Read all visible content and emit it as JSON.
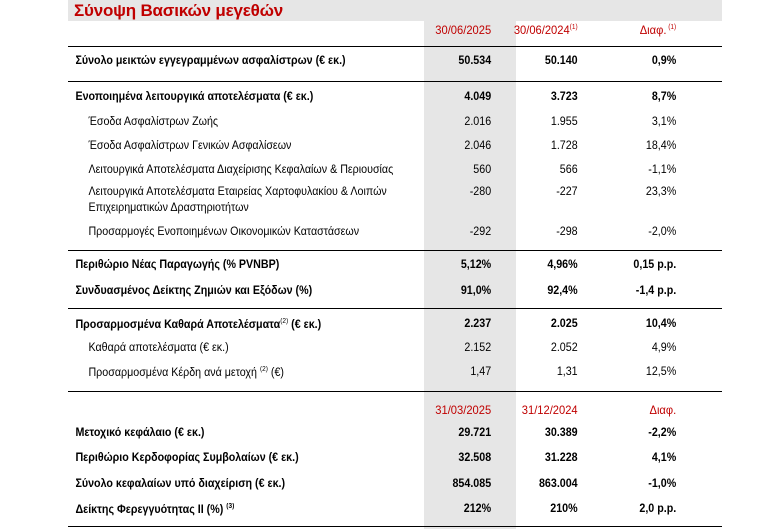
{
  "title": "Σύνοψη Βασικών μεγεθών",
  "header1": {
    "c1": "30/06/2025",
    "c2": "30/06/2024",
    "c2_sup": "(1)",
    "c3": "Διαφ.",
    "c3_sup": " (1)"
  },
  "section1": [
    {
      "label": "Σύνολο μεικτών εγγεγραμμένων ασφαλίστρων (€ εκ.)",
      "c1": "50.534",
      "c2": "50.140",
      "c3": "0,9%"
    }
  ],
  "section2": [
    {
      "label": "Ενοποιημένα λειτουργικά αποτελέσματα (€ εκ.)",
      "c1": "4.049",
      "c2": "3.723",
      "c3": "8,7%"
    },
    {
      "label": "Έσοδα Ασφαλίστρων Ζωής",
      "c1": "2.016",
      "c2": "1.955",
      "c3": "3,1%"
    },
    {
      "label": "Έσοδα Ασφαλίστρων Γενικών Ασφαλίσεων",
      "c1": "2.046",
      "c2": "1.728",
      "c3": "18,4%"
    },
    {
      "label": "Λειτουργικά Αποτελέσματα Διαχείρισης Κεφαλαίων & Περιουσίας",
      "c1": "560",
      "c2": "566",
      "c3": "-1,1%"
    },
    {
      "label": "Λειτουργικά Αποτελέσματα Εταιρείας Χαρτοφυλακίου & Λοιπών",
      "label2": "Επιχειρηματικών Δραστηριοτήτων",
      "c1": "-280",
      "c2": "-227",
      "c3": "23,3%"
    },
    {
      "label": "Προσαρμογές Ενοποιημένων Οικονομικών Καταστάσεων",
      "c1": "-292",
      "c2": "-298",
      "c3": "-2,0%"
    }
  ],
  "section3": [
    {
      "label": "Περιθώριο Νέας Παραγωγής (% PVNBP)",
      "c1": "5,12%",
      "c2": "4,96%",
      "c3": "0,15 p.p."
    },
    {
      "label": "Συνδυασμένος Δείκτης Ζημιών και Εξόδων (%)",
      "c1": "91,0%",
      "c2": "92,4%",
      "c3": "-1,4 p.p."
    }
  ],
  "section4": [
    {
      "label": "Προσαρμοσμένα Καθαρά Αποτελέσματα",
      "sup": "(2)",
      "label_tail": " (€ εκ.)",
      "c1": "2.237",
      "c2": "2.025",
      "c3": "10,4%"
    },
    {
      "label": "Καθαρά αποτελέσματα (€ εκ.)",
      "c1": "2.152",
      "c2": "2.052",
      "c3": "4,9%"
    },
    {
      "label": "Προσαρμοσμένα Κέρδη ανά μετοχή ",
      "sup": "(2)",
      "label_tail": " (€)",
      "c1": "1,47",
      "c2": "1,31",
      "c3": "12,5%"
    }
  ],
  "header2": {
    "c1": "31/03/2025",
    "c2": "31/12/2024",
    "c3": "Διαφ."
  },
  "section5": [
    {
      "label": "Μετοχικό κεφάλαιο (€ εκ.)",
      "c1": "29.721",
      "c2": "30.389",
      "c3": "-2,2%"
    },
    {
      "label": "Περιθώριο Κερδοφορίας Συμβολαίων (€ εκ.)",
      "c1": "32.508",
      "c2": "31.228",
      "c3": "4,1%"
    },
    {
      "label": "Σύνολο κεφαλαίων υπό διαχείριση (€ εκ.)",
      "c1": "854.085",
      "c2": "863.004",
      "c3": "-1,0%"
    },
    {
      "label": "Δείκτης Φερεγγυότητας ΙΙ (%) ",
      "sup": "(3)",
      "c1": "212%",
      "c2": "210%",
      "c3": "2,0 p.p."
    }
  ]
}
